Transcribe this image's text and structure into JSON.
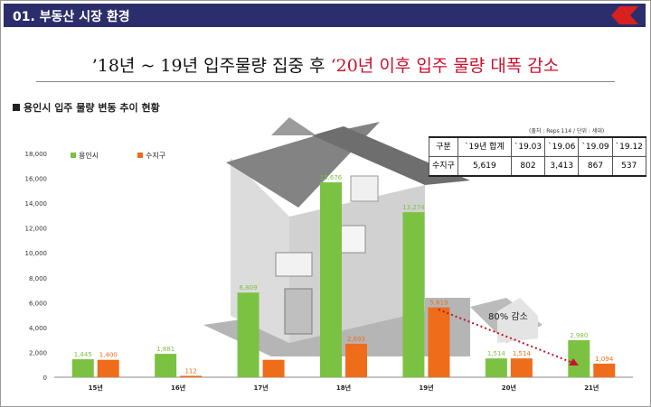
{
  "header": {
    "title": "01. 부동산 시장 환경"
  },
  "headline": {
    "part1": "’18년 ~ 19년 입주물량 집중 후 ",
    "part2": "‘20년 이후 입주 물량 대폭 감소"
  },
  "section_title": "용인시 입주 물량 변동 추이 현황",
  "source_note": "(출처 : Reps 114 / 단위 : 세대)",
  "table": {
    "header": [
      "구분",
      "`19년 합계",
      "`19.03",
      "`19.06",
      "`19.09",
      "`19.12"
    ],
    "row": [
      "수지구",
      "5,619",
      "802",
      "3,413",
      "867",
      "537"
    ]
  },
  "annotation": "80% 감소",
  "colors": {
    "yongin": "#7cc242",
    "suji": "#ef6c1a",
    "arrow": "#c8102e",
    "header_bg": "#2b2e6b"
  },
  "chart_data": {
    "type": "bar",
    "categories": [
      "15년",
      "16년",
      "17년",
      "18년",
      "19년",
      "20년",
      "21년"
    ],
    "series": [
      {
        "name": "용인시",
        "values": [
          1445,
          1881,
          6809,
          15676,
          13274,
          1514,
          2980
        ],
        "labels": [
          "1,445",
          "1,881",
          "6,809",
          "15,676",
          "13,274",
          "1,514",
          "2,980"
        ]
      },
      {
        "name": "수지구",
        "values": [
          1400,
          112,
          1400,
          2693,
          5619,
          1514,
          1094
        ],
        "labels": [
          "1,400",
          "112",
          "",
          "2,693",
          "5,619",
          "1,514",
          "1,094"
        ]
      }
    ],
    "yticks": [
      "0",
      "2,000",
      "4,000",
      "6,000",
      "8,000",
      "10,000",
      "12,000",
      "14,000",
      "16,000",
      "18,000"
    ],
    "ylim": [
      0,
      18000
    ],
    "legend": "top-left",
    "grid": false
  }
}
